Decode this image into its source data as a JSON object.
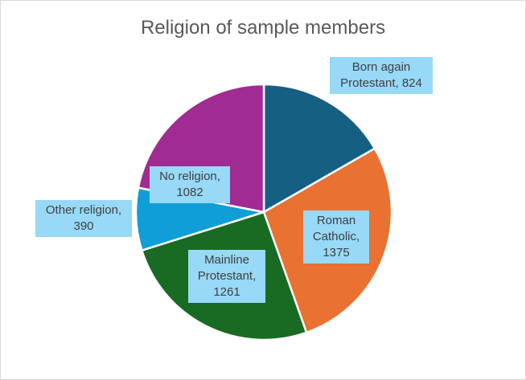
{
  "chart_data": {
    "type": "pie",
    "title": "Religion of sample members",
    "categories": [
      "Born again Protestant",
      "Roman Catholic",
      "Mainline Protestant",
      "Other religion",
      "No religion"
    ],
    "values": [
      824,
      1375,
      1261,
      390,
      1082
    ],
    "colors": [
      "#156082",
      "#e97132",
      "#196b24",
      "#0f9ed5",
      "#a02b93"
    ],
    "labels": [
      {
        "line1": "Born again",
        "line2": "Protestant, 824"
      },
      {
        "line1": "Roman",
        "line2": "Catholic,",
        "line3": "1375"
      },
      {
        "line1": "Mainline",
        "line2": "Protestant,",
        "line3": "1261"
      },
      {
        "line1": "Other religion,",
        "line2": "390"
      },
      {
        "line1": "No religion,",
        "line2": "1082"
      }
    ],
    "legend": "none"
  }
}
